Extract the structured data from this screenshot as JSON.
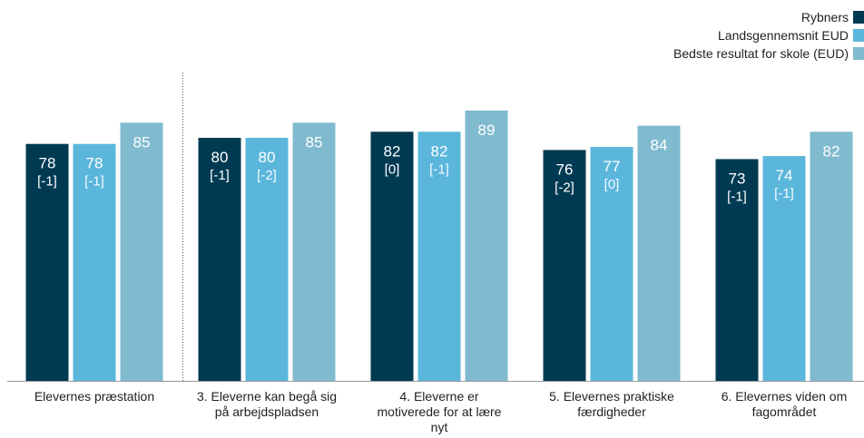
{
  "chart_data": {
    "type": "bar",
    "categories": [
      "Elevernes præstation",
      "3. Eleverne kan begå sig på arbejdspladsen",
      "4. Eleverne er motiverede for at lære nyt",
      "5. Elevernes praktiske færdigheder",
      "6. Elevernes viden om fagområdet"
    ],
    "category_lines": [
      [
        "Elevernes præstation"
      ],
      [
        "3. Eleverne kan begå sig",
        "på arbejdspladsen"
      ],
      [
        "4. Eleverne er",
        "motiverede for at lære",
        "nyt"
      ],
      [
        "5. Elevernes praktiske",
        "færdigheder"
      ],
      [
        "6. Elevernes viden om",
        "fagområdet"
      ]
    ],
    "series": [
      {
        "name": "Rybners",
        "color": "#003a52",
        "values": [
          78,
          80,
          82,
          76,
          73
        ],
        "changes": [
          "[-1]",
          "[-1]",
          "[0]",
          "[-2]",
          "[-1]"
        ]
      },
      {
        "name": "Landsgennemsnit EUD",
        "color": "#5bb6dc",
        "values": [
          78,
          80,
          82,
          77,
          74
        ],
        "changes": [
          "[-1]",
          "[-2]",
          "[-1]",
          "[0]",
          "[-1]"
        ]
      },
      {
        "name": "Bedste resultat for skole (EUD)",
        "color": "#80bacf",
        "values": [
          85,
          85,
          89,
          84,
          82
        ],
        "changes": [
          "",
          "",
          "",
          "",
          ""
        ]
      }
    ],
    "ylim": [
      0,
      100
    ],
    "legend_position": "top-right",
    "grid": false,
    "separator_after_category": 0
  }
}
